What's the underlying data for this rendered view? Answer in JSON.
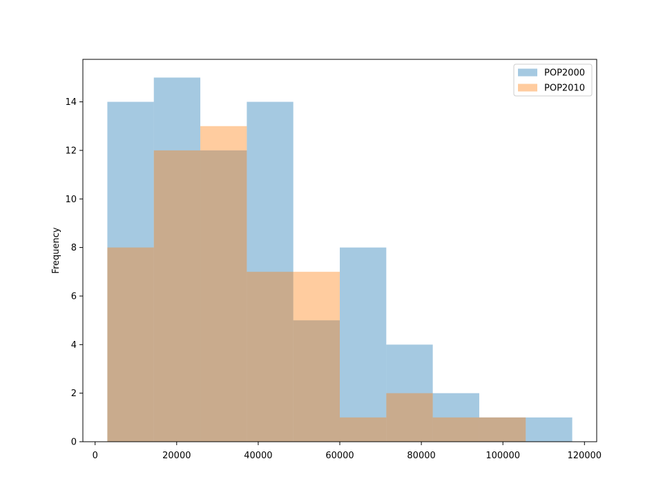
{
  "chart_data": {
    "type": "bar",
    "title": "",
    "xlabel": "",
    "ylabel": "Frequency",
    "xlim": [
      -3000,
      123000
    ],
    "ylim": [
      0,
      15.75
    ],
    "x_ticks": [
      0,
      20000,
      40000,
      60000,
      80000,
      100000,
      120000
    ],
    "y_ticks": [
      0,
      2,
      4,
      6,
      8,
      10,
      12,
      14
    ],
    "grid": false,
    "legend_position": "top-right",
    "series": [
      {
        "name": "POP2000",
        "color": "#1f77b4",
        "alpha": 0.4,
        "bins": [
          {
            "x0": 3000,
            "x1": 14400,
            "count": 14
          },
          {
            "x0": 14400,
            "x1": 25800,
            "count": 15
          },
          {
            "x0": 25800,
            "x1": 37200,
            "count": 12
          },
          {
            "x0": 37200,
            "x1": 48600,
            "count": 14
          },
          {
            "x0": 48600,
            "x1": 60000,
            "count": 5
          },
          {
            "x0": 60000,
            "x1": 71400,
            "count": 8
          },
          {
            "x0": 71400,
            "x1": 82800,
            "count": 4
          },
          {
            "x0": 82800,
            "x1": 94200,
            "count": 2
          },
          {
            "x0": 94200,
            "x1": 105600,
            "count": 1
          },
          {
            "x0": 105600,
            "x1": 117000,
            "count": 1
          }
        ]
      },
      {
        "name": "POP2010",
        "color": "#ff7f0e",
        "alpha": 0.4,
        "bins": [
          {
            "x0": 3000,
            "x1": 14400,
            "count": 8
          },
          {
            "x0": 14400,
            "x1": 25800,
            "count": 12
          },
          {
            "x0": 25800,
            "x1": 37200,
            "count": 13
          },
          {
            "x0": 37200,
            "x1": 48600,
            "count": 7
          },
          {
            "x0": 48600,
            "x1": 60000,
            "count": 7
          },
          {
            "x0": 60000,
            "x1": 71400,
            "count": 1
          },
          {
            "x0": 71400,
            "x1": 82800,
            "count": 2
          },
          {
            "x0": 82800,
            "x1": 94200,
            "count": 1
          },
          {
            "x0": 94200,
            "x1": 105600,
            "count": 1
          }
        ]
      }
    ]
  }
}
